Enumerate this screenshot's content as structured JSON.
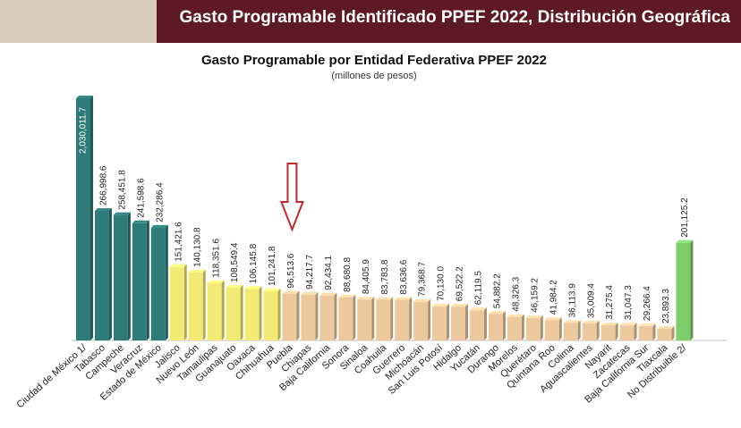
{
  "header": {
    "title": "Gasto Programable Identificado PPEF 2022, Distribución Geográfica"
  },
  "colors": {
    "banner": "#5e1a24",
    "banner_strip": "#d9ccb8",
    "teal": "#2e7b77",
    "yellow": "#f3ea75",
    "tan": "#ecc99c",
    "green": "#7dcd6d",
    "arrow": "#c0282d"
  },
  "chart_data": {
    "type": "bar",
    "title": "Gasto Programable por Entidad Federativa PPEF 2022",
    "subtitle": "(millones de pesos)",
    "xlabel": "",
    "ylabel": "",
    "grid": false,
    "legend": "none",
    "categories": [
      "Ciudad de México 1/",
      "Tabasco",
      "Campeche",
      "Veracruz",
      "Estado de México",
      "Jalisco",
      "Nuevo León",
      "Tamaulipas",
      "Guanajuato",
      "Oaxaca",
      "Chihuahua",
      "Puebla",
      "Chiapas",
      "Baja California",
      "Sonora",
      "Sinaloa",
      "Coahuila",
      "Guerrero",
      "Michoacán",
      "San Luis Potosí",
      "Hidalgo",
      "Yucatán",
      "Durango",
      "Morelos",
      "Querétaro",
      "Quintana Roo",
      "Colima",
      "Aguascalientes",
      "Nayarit",
      "Zacatecas",
      "Baja California Sur",
      "Tlaxcala",
      "No Distribuible 2/"
    ],
    "values": [
      2030011.7,
      266998.6,
      258451.8,
      241598.6,
      232286.4,
      151421.6,
      140130.8,
      118351.6,
      108549.4,
      106145.8,
      101241.8,
      96513.6,
      94217.7,
      92434.1,
      88680.8,
      84405.9,
      83783.8,
      83636.6,
      79368.7,
      70130.0,
      69522.2,
      62119.5,
      54882.2,
      48326.3,
      46159.2,
      41984.2,
      36113.9,
      35009.4,
      31275.4,
      31047.3,
      29266.4,
      23893.3,
      201125.2
    ],
    "value_labels": [
      "2,030,011.7",
      "266,998.6",
      "258,451.8",
      "241,598.6",
      "232,286.4",
      "151,421.6",
      "140,130.8",
      "118,351.6",
      "108,549.4",
      "106,145.8",
      "101,241.8",
      "96,513.6",
      "94,217.7",
      "92,434.1",
      "88,680.8",
      "84,405.9",
      "83,783.8",
      "83,636.6",
      "79,368.7",
      "70,130.0",
      "69,522.2",
      "62,119.5",
      "54,882.2",
      "48,326.3",
      "46,159.2",
      "41,984.2",
      "36,113.9",
      "35,009.4",
      "31,275.4",
      "31,047.3",
      "29,266.4",
      "23,893.3",
      "201,125.2"
    ],
    "bar_colors": [
      "teal",
      "teal",
      "teal",
      "teal",
      "teal",
      "yellow",
      "yellow",
      "yellow",
      "yellow",
      "yellow",
      "yellow",
      "tan",
      "tan",
      "tan",
      "tan",
      "tan",
      "tan",
      "tan",
      "tan",
      "tan",
      "tan",
      "tan",
      "tan",
      "tan",
      "tan",
      "tan",
      "tan",
      "tan",
      "tan",
      "tan",
      "tan",
      "tan",
      "green"
    ],
    "highlighted_category": "Puebla"
  }
}
